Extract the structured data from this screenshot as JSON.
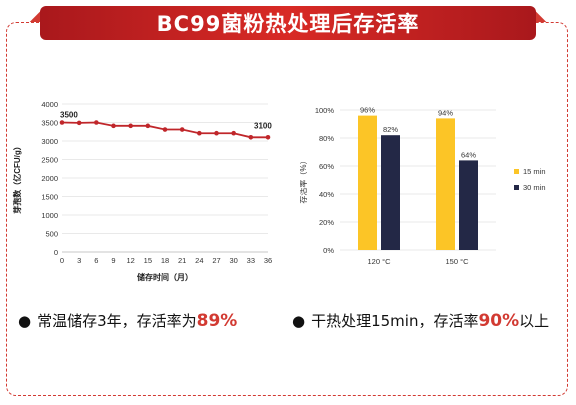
{
  "header": {
    "title": "BC99菌粉热处理后存活率"
  },
  "chart_data": [
    {
      "type": "line",
      "x": [
        0,
        3,
        6,
        9,
        12,
        15,
        18,
        21,
        24,
        27,
        30,
        33,
        36
      ],
      "values": [
        3500,
        3490,
        3500,
        3410,
        3410,
        3410,
        3310,
        3310,
        3210,
        3210,
        3210,
        3100,
        3100
      ],
      "xticks": [
        "0",
        "3",
        "6",
        "9",
        "12",
        "15",
        "18",
        "21",
        "24",
        "27",
        "30",
        "33",
        "36"
      ],
      "yticks": [
        "0",
        "500",
        "1000",
        "1500",
        "2000",
        "2500",
        "3000",
        "3500",
        "4000"
      ],
      "ylim": [
        0,
        4000
      ],
      "xlabel": "储存时间（月）",
      "ylabel": "芽孢数（亿CFU/g）",
      "data_labels": {
        "start": "3500",
        "end": "3100"
      },
      "color": "#c0262a",
      "grid": true
    },
    {
      "type": "bar",
      "categories": [
        "120 °C",
        "150 °C"
      ],
      "series": [
        {
          "name": "15 min",
          "values": [
            96,
            94
          ],
          "labels": [
            "96%",
            "94%"
          ],
          "color": "#fcc526"
        },
        {
          "name": "30 min",
          "values": [
            82,
            64
          ],
          "labels": [
            "82%",
            "64%"
          ],
          "color": "#232846"
        }
      ],
      "yticks": [
        "0%",
        "20%",
        "40%",
        "60%",
        "80%",
        "100%"
      ],
      "ylim": [
        0,
        100
      ],
      "ylabel": "存活率（%）",
      "legend": "right",
      "grid": true
    }
  ],
  "bottom": {
    "left": {
      "bullet": "●",
      "text": "常温储存3年，存活率为",
      "highlight": "89%"
    },
    "right": {
      "bullet": "●",
      "text": "干热处理15min，存活率",
      "highlight": "90%",
      "suffix": "以上"
    }
  }
}
